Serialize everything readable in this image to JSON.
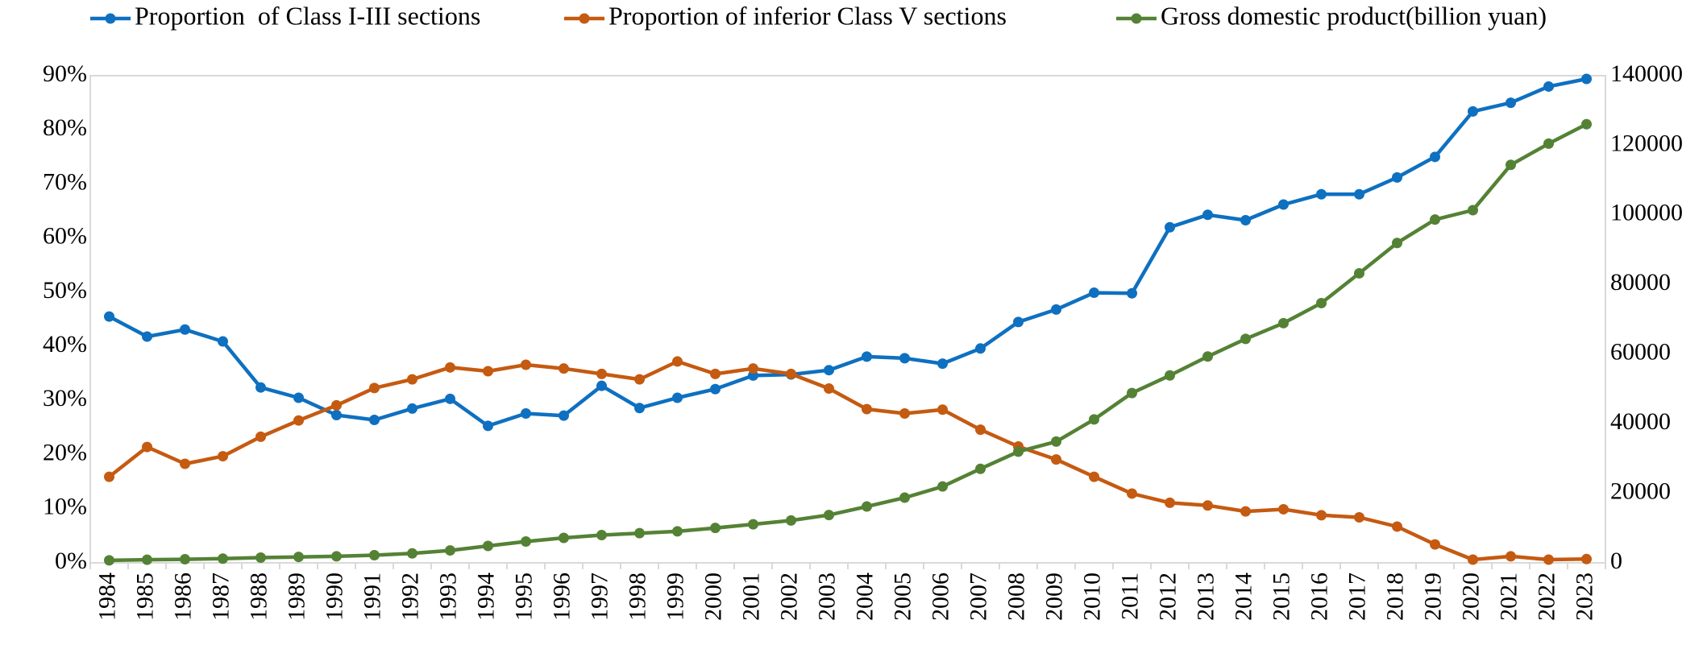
{
  "chart_data": {
    "type": "line",
    "title": "",
    "xlabel": "",
    "ylabel": "",
    "y2label": "",
    "categories": [
      "1984",
      "1985",
      "1986",
      "1987",
      "1988",
      "1989",
      "1990",
      "1991",
      "1992",
      "1993",
      "1994",
      "1995",
      "1996",
      "1997",
      "1998",
      "1999",
      "2000",
      "2001",
      "2002",
      "2003",
      "2004",
      "2005",
      "2006",
      "2007",
      "2008",
      "2009",
      "2010",
      "2011",
      "2012",
      "2013",
      "2014",
      "2015",
      "2016",
      "2017",
      "2018",
      "2019",
      "2020",
      "2021",
      "2022",
      "2023"
    ],
    "ylim": [
      0,
      90
    ],
    "y_ticks": [
      "0%",
      "10%",
      "20%",
      "30%",
      "40%",
      "50%",
      "60%",
      "70%",
      "80%",
      "90%"
    ],
    "y2lim": [
      0,
      140000
    ],
    "y2_ticks": [
      "0",
      "20000",
      "40000",
      "60000",
      "80000",
      "100000",
      "120000",
      "140000"
    ],
    "legend_position": "top",
    "grid": false,
    "series": [
      {
        "name": "Proportion  of Class I-III sections",
        "axis": "left",
        "color": "#0E70C0",
        "values": [
          45.5,
          41.8,
          43.1,
          40.9,
          32.4,
          30.5,
          27.3,
          26.4,
          28.5,
          30.3,
          25.3,
          27.6,
          27.2,
          32.7,
          28.6,
          30.5,
          32.1,
          34.6,
          34.8,
          35.6,
          38.1,
          37.8,
          36.8,
          39.6,
          44.5,
          46.8,
          49.9,
          49.8,
          62.0,
          64.3,
          63.3,
          66.2,
          68.1,
          68.1,
          71.2,
          75.0,
          83.4,
          85.0,
          88.0,
          89.4
        ]
      },
      {
        "name": "Proportion of inferior Class V sections",
        "axis": "left",
        "color": "#C55A11",
        "values": [
          15.9,
          21.4,
          18.3,
          19.7,
          23.3,
          26.3,
          29.1,
          32.3,
          33.9,
          36.1,
          35.4,
          36.6,
          35.9,
          34.9,
          33.9,
          37.2,
          34.9,
          35.9,
          34.9,
          32.2,
          28.4,
          27.6,
          28.3,
          24.6,
          21.5,
          19.1,
          15.9,
          12.8,
          11.1,
          10.6,
          9.5,
          9.9,
          8.8,
          8.4,
          6.7,
          3.4,
          0.6,
          1.2,
          0.6,
          0.7
        ]
      },
      {
        "name": "Gross domestic product(billion yuan)",
        "axis": "right",
        "color": "#548235",
        "values": [
          720,
          902,
          1028,
          1206,
          1505,
          1700,
          1872,
          2194,
          2707,
          3567,
          4864,
          6134,
          7181,
          7972,
          8520,
          9056,
          10028,
          11086,
          12172,
          13742,
          16184,
          18732,
          21944,
          27023,
          31952,
          34852,
          41212,
          48794,
          53858,
          59296,
          64356,
          68886,
          74640,
          83204,
          91928,
          98652,
          101357,
          114367,
          120472,
          126058
        ]
      }
    ]
  }
}
